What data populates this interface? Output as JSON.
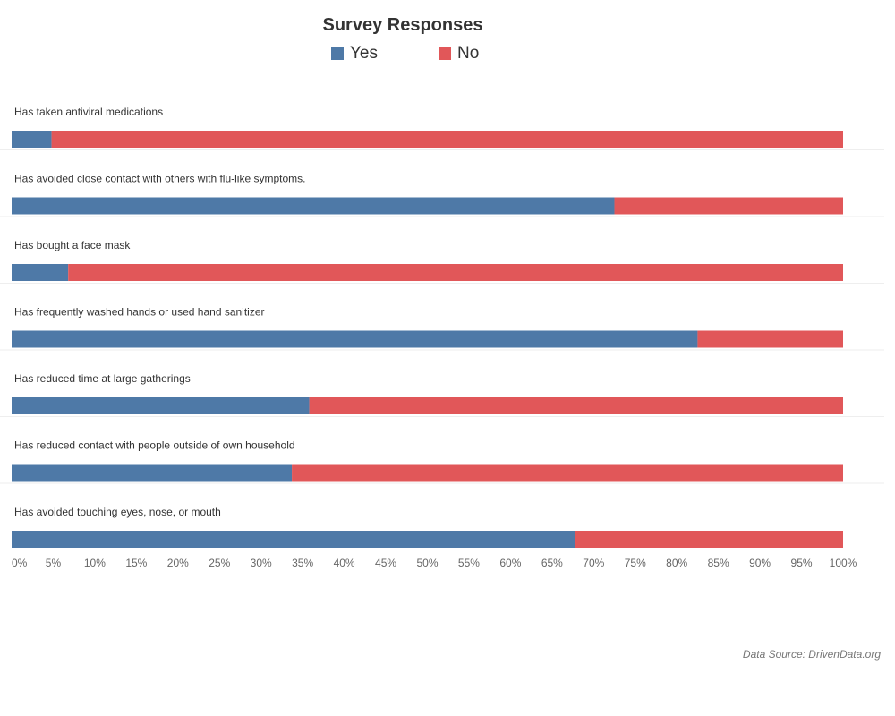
{
  "chart_data": {
    "type": "bar",
    "orientation": "horizontal",
    "stacked": true,
    "title": "Survey Responses",
    "categories": [
      "Has taken antiviral medications",
      "Has avoided close contact with others with flu-like symptoms.",
      "Has bought a face mask",
      "Has frequently washed hands or used hand sanitizer",
      "Has reduced time at large gatherings",
      "Has reduced contact with people outside of own household",
      "Has avoided touching eyes, nose, or mouth"
    ],
    "series": [
      {
        "name": "Yes",
        "color": "#4e79a7",
        "values": [
          4.8,
          72.5,
          6.8,
          82.5,
          35.8,
          33.7,
          67.8
        ]
      },
      {
        "name": "No",
        "color": "#e15759",
        "values": [
          95.2,
          27.5,
          93.2,
          17.5,
          64.2,
          66.3,
          32.2
        ]
      }
    ],
    "xlim": [
      0,
      100
    ],
    "x_ticks": [
      "0%",
      "5%",
      "10%",
      "15%",
      "20%",
      "25%",
      "30%",
      "35%",
      "40%",
      "45%",
      "50%",
      "55%",
      "60%",
      "65%",
      "70%",
      "75%",
      "80%",
      "85%",
      "90%",
      "95%",
      "100%"
    ],
    "legend_position": "top",
    "grid": false
  },
  "source": "Data Source: DrivenData.org"
}
